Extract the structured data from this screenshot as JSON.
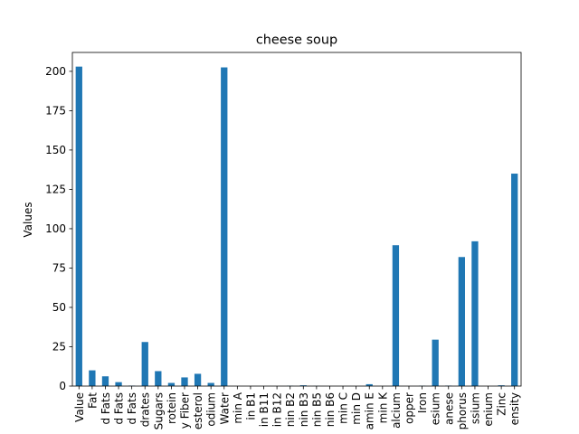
{
  "chart_data": {
    "type": "bar",
    "title": "cheese soup",
    "xlabel": "",
    "ylabel": "Values",
    "ylim": [
      0,
      212
    ],
    "yticks": [
      0,
      25,
      50,
      75,
      100,
      125,
      150,
      175,
      200
    ],
    "grid": false,
    "legend": "none",
    "bar_color": "#1f77b4",
    "categories": [
      "Value",
      "Fat",
      "d Fats",
      "d Fats",
      "d Fats",
      "drates",
      "Sugars",
      "rotein",
      "y Fiber",
      "esterol",
      "odium",
      "Water",
      "min A",
      "in B1",
      "in B11",
      "in B12",
      "nin B2",
      "nin B3",
      "nin B5",
      "nin B6",
      "min C",
      "min D",
      "amin E",
      "min K",
      "alcium",
      "opper",
      "Iron",
      "esium",
      "anese",
      "phorus",
      "ssium",
      "enium",
      "Zinc",
      "ensity"
    ],
    "values": [
      203,
      10,
      6.2,
      2.5,
      0.3,
      28,
      9.5,
      2,
      5.5,
      7.8,
      2,
      202.5,
      0,
      0,
      0,
      0,
      0.2,
      0.5,
      0.1,
      0,
      0,
      0,
      1.2,
      0,
      89.5,
      0,
      0.2,
      29.5,
      0.3,
      82,
      92,
      0,
      0.5,
      135
    ]
  }
}
